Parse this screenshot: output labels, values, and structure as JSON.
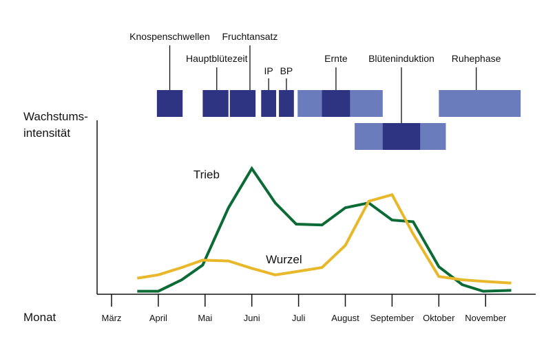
{
  "chart_data": {
    "type": "line",
    "ylabel_line1": "Wachstums-",
    "ylabel_line2": "intensität",
    "xlabel": "Monat",
    "categories": [
      "März",
      "April",
      "Mai",
      "Juni",
      "Juli",
      "August",
      "September",
      "Oktober",
      "November"
    ],
    "x_range": [
      0,
      9
    ],
    "ylim": [
      0,
      100
    ],
    "grid": false,
    "series": [
      {
        "name": "Trieb",
        "color": "#0b6b35",
        "points": [
          [
            0.55,
            1
          ],
          [
            1.0,
            1
          ],
          [
            1.5,
            8
          ],
          [
            1.95,
            17
          ],
          [
            2.5,
            52
          ],
          [
            3.0,
            76
          ],
          [
            3.5,
            55
          ],
          [
            3.95,
            42
          ],
          [
            4.5,
            41.5
          ],
          [
            5.0,
            52
          ],
          [
            5.5,
            55
          ],
          [
            6.0,
            44.5
          ],
          [
            6.45,
            43.5
          ],
          [
            7.0,
            16
          ],
          [
            7.5,
            5
          ],
          [
            7.95,
            1
          ],
          [
            8.55,
            1.5
          ]
        ]
      },
      {
        "name": "Wurzel",
        "color": "#e8b82a",
        "points": [
          [
            0.55,
            9
          ],
          [
            1.0,
            11
          ],
          [
            1.5,
            15.5
          ],
          [
            1.95,
            20
          ],
          [
            2.5,
            19.5
          ],
          [
            3.0,
            15
          ],
          [
            3.5,
            11
          ],
          [
            3.95,
            13
          ],
          [
            4.5,
            15.5
          ],
          [
            5.0,
            29
          ],
          [
            5.5,
            56
          ],
          [
            6.0,
            60
          ],
          [
            6.45,
            36
          ],
          [
            7.0,
            10
          ],
          [
            7.5,
            8
          ],
          [
            7.95,
            7
          ],
          [
            8.55,
            6
          ]
        ]
      }
    ],
    "phases": [
      {
        "label": "Knospenschwellen",
        "color": "#2e3382",
        "bars": [
          [
            0.97,
            1.52
          ]
        ]
      },
      {
        "label": "Hauptblütezeit",
        "color": "#2e3382",
        "bars": [
          [
            1.95,
            2.5
          ]
        ]
      },
      {
        "label": "Fruchtansatz",
        "color": "#2e3382",
        "bars": [
          [
            2.53,
            3.08
          ]
        ]
      },
      {
        "label": "IP",
        "color": "#2e3382",
        "bars": [
          [
            3.2,
            3.52
          ]
        ]
      },
      {
        "label": "BP",
        "color": "#2e3382",
        "bars": [
          [
            3.58,
            3.9
          ]
        ]
      },
      {
        "label": "Ernte",
        "color": "#6b7cbd",
        "bars": [
          [
            3.98,
            5.8
          ]
        ],
        "highlight": [
          4.5,
          5.1
        ]
      },
      {
        "label": "Blüteninduktion",
        "color": "#6b7cbd",
        "bars": [
          [
            5.2,
            7.15
          ]
        ],
        "highlight": [
          5.8,
          6.6
        ],
        "lower": true
      },
      {
        "label": "Ruhephase",
        "color": "#6b7cbd",
        "bars": [
          [
            7.0,
            8.75
          ]
        ]
      }
    ],
    "series_labels": [
      {
        "text": "Trieb",
        "series": "Trieb"
      },
      {
        "text": "Wurzel",
        "series": "Wurzel"
      }
    ]
  }
}
